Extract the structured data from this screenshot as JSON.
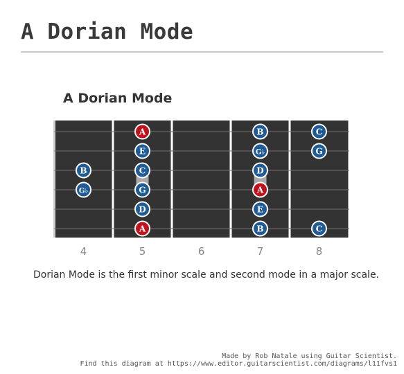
{
  "page": {
    "title": "A Dorian Mode"
  },
  "diagram": {
    "title": "A Dorian Mode",
    "caption": "Dorian Mode is the first minor scale and second mode in a major scale.",
    "fret_numbers": [
      "4",
      "5",
      "6",
      "7",
      "8"
    ],
    "strings": 6,
    "colors": {
      "board": "#333333",
      "root_note": "#c0121c",
      "scale_note": "#1f5b94",
      "fret_wire": "#ffffff",
      "string_line": "#6f6f6f",
      "fret_label": "#888888"
    },
    "notes": [
      {
        "string": 1,
        "fret": 5,
        "label": "A",
        "root": true
      },
      {
        "string": 1,
        "fret": 7,
        "label": "B",
        "root": false
      },
      {
        "string": 1,
        "fret": 8,
        "label": "C",
        "root": false
      },
      {
        "string": 2,
        "fret": 5,
        "label": "E",
        "root": false
      },
      {
        "string": 2,
        "fret": 7,
        "label": "G♭",
        "root": false
      },
      {
        "string": 2,
        "fret": 8,
        "label": "G",
        "root": false
      },
      {
        "string": 3,
        "fret": 4,
        "label": "B",
        "root": false
      },
      {
        "string": 3,
        "fret": 5,
        "label": "C",
        "root": false
      },
      {
        "string": 3,
        "fret": 7,
        "label": "D",
        "root": false
      },
      {
        "string": 4,
        "fret": 4,
        "label": "G♭",
        "root": false
      },
      {
        "string": 4,
        "fret": 5,
        "label": "G",
        "root": false
      },
      {
        "string": 4,
        "fret": 7,
        "label": "A",
        "root": true
      },
      {
        "string": 5,
        "fret": 5,
        "label": "D",
        "root": false
      },
      {
        "string": 5,
        "fret": 7,
        "label": "E",
        "root": false
      },
      {
        "string": 6,
        "fret": 5,
        "label": "A",
        "root": true
      },
      {
        "string": 6,
        "fret": 7,
        "label": "B",
        "root": false
      },
      {
        "string": 6,
        "fret": 8,
        "label": "C",
        "root": false
      }
    ],
    "connectors": [
      {
        "string_from": 3,
        "string_to": 4,
        "fret": 5
      },
      {
        "string_from": 3,
        "string_to": 4,
        "fret": 7
      }
    ]
  },
  "credits": {
    "line1": "Made by Rob Natale using Guitar Scientist.",
    "line2": "Find this diagram at https://www.editor.guitarscientist.com/diagrams/l11fvs1"
  }
}
